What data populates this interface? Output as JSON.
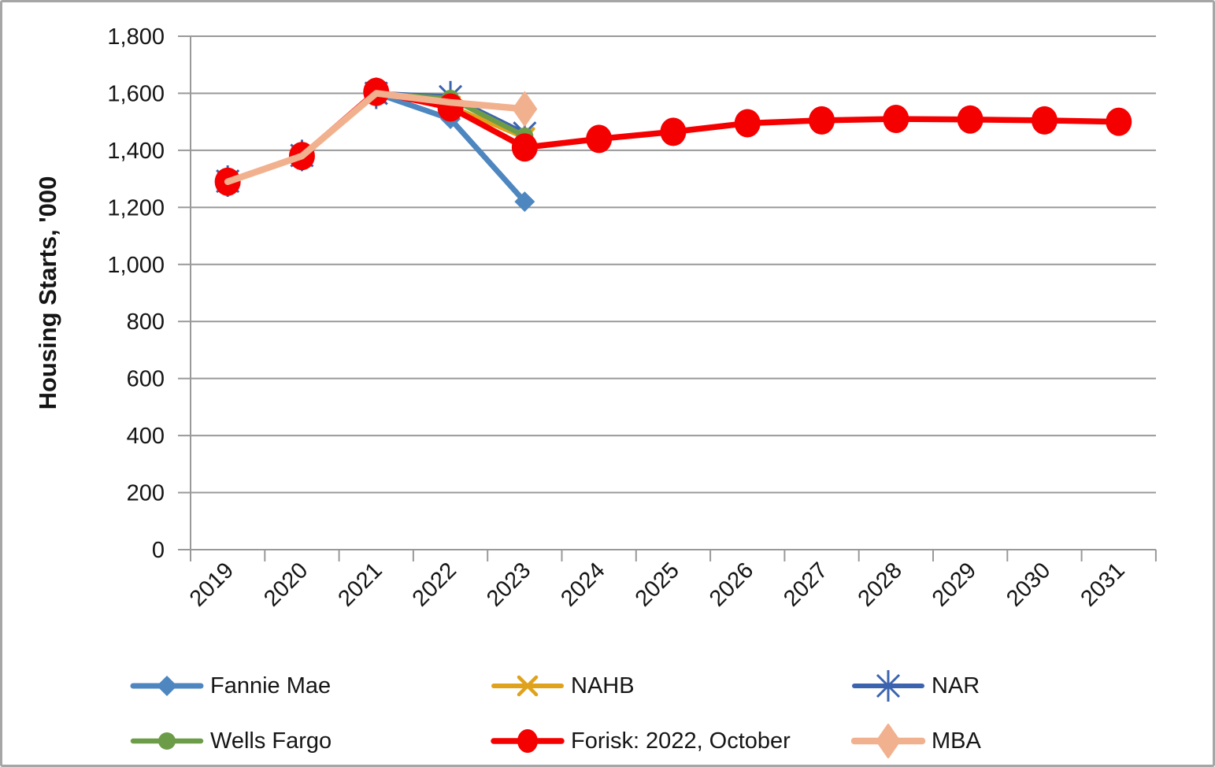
{
  "chart_data": {
    "type": "line",
    "title": "",
    "xlabel": "",
    "ylabel": "Housing Starts, '000",
    "ylim": [
      0,
      1800
    ],
    "grid": "horizontal-only",
    "legend_position": "bottom",
    "categories": [
      "2019",
      "2020",
      "2021",
      "2022",
      "2023",
      "2024",
      "2025",
      "2026",
      "2027",
      "2028",
      "2029",
      "2030",
      "2031"
    ],
    "y_ticks": {
      "values": [
        0,
        200,
        400,
        600,
        800,
        1000,
        1200,
        1400,
        1600,
        1800
      ],
      "labels": [
        "0",
        "200",
        "400",
        "600",
        "800",
        "1,000",
        "1,200",
        "1,400",
        "1,600",
        "1,800"
      ]
    },
    "series": [
      {
        "name": "Fannie Mae",
        "color": "#4E86C0",
        "marker": "diamond",
        "line_width": 7,
        "values": [
          1290,
          1380,
          1600,
          1510,
          1220,
          null,
          null,
          null,
          null,
          null,
          null,
          null,
          null
        ]
      },
      {
        "name": "NAHB",
        "color": "#DFA21C",
        "marker": "x",
        "line_width": 6,
        "values": [
          1290,
          1380,
          1600,
          1555,
          1445,
          null,
          null,
          null,
          null,
          null,
          null,
          null,
          null
        ]
      },
      {
        "name": "NAR",
        "color": "#3C64AE",
        "marker": "asterisk",
        "line_width": 6,
        "values": [
          1292,
          1382,
          1600,
          1588,
          1460,
          null,
          null,
          null,
          null,
          null,
          null,
          null,
          null
        ]
      },
      {
        "name": "Wells Fargo",
        "color": "#6D9C49",
        "marker": "circle",
        "line_width": 6.5,
        "values": [
          1290,
          1380,
          1598,
          1582,
          1450,
          null,
          null,
          null,
          null,
          null,
          null,
          null,
          null
        ]
      },
      {
        "name": "Forisk: 2022, October",
        "color": "#F50000",
        "marker": "circle-large",
        "line_width": 7.5,
        "values": [
          1290,
          1380,
          1605,
          1550,
          1410,
          1440,
          1465,
          1495,
          1505,
          1510,
          1508,
          1505,
          1500
        ]
      },
      {
        "name": "MBA",
        "color": "#F2B18E",
        "marker": "diamond-tall",
        "line_width": 8.5,
        "marker_indices": [
          4
        ],
        "values": [
          1290,
          1380,
          1600,
          1568,
          1545,
          null,
          null,
          null,
          null,
          null,
          null,
          null,
          null
        ]
      }
    ],
    "colors": {
      "gridline": "#999999",
      "axis": "#999999",
      "text": "#141414"
    }
  }
}
